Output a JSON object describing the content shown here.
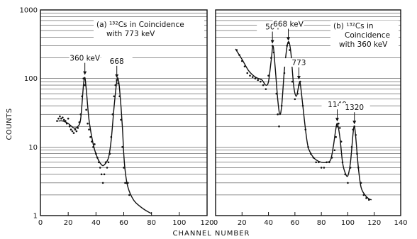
{
  "figure": {
    "ylabel": "COUNTS",
    "xlabel": "CHANNEL NUMBER"
  },
  "chart_data": [
    {
      "type": "scatter",
      "panel_label": "(a)",
      "title_lines": [
        "(a) ¹³²Cs in Coincidence",
        "with 773 keV"
      ],
      "xlim": [
        0,
        120
      ],
      "ylim": [
        1,
        1000
      ],
      "yscale": "log",
      "x_ticks": [
        0,
        20,
        40,
        60,
        80,
        100,
        120
      ],
      "x_tick_labels": [
        "0",
        "20",
        "40",
        "60",
        "80",
        "100",
        "120"
      ],
      "y_ticks": [
        1,
        10,
        100,
        1000
      ],
      "y_tick_labels": [
        "1",
        "10",
        "100",
        "1000"
      ],
      "grid": "horizontal",
      "annotations": [
        {
          "text": "360 keV",
          "x": 32,
          "y": 105
        },
        {
          "text": "668",
          "x": 55,
          "y": 95
        }
      ],
      "series": [
        {
          "points_x": [
            12,
            13,
            14,
            15,
            16,
            17,
            18,
            19,
            20,
            21,
            22,
            23,
            24,
            25,
            26,
            27,
            28,
            29,
            30,
            31,
            32,
            33,
            34,
            35,
            36,
            37,
            38,
            39,
            40,
            41,
            42,
            43,
            44,
            45,
            46,
            47,
            48,
            49,
            50,
            51,
            52,
            53,
            54,
            55,
            56,
            57,
            58,
            59,
            60,
            61,
            62,
            63,
            64
          ],
          "points_y": [
            24,
            26,
            28,
            26,
            27,
            25,
            24,
            22,
            26,
            20,
            18,
            17,
            16,
            18,
            17,
            19,
            23,
            30,
            55,
            100,
            80,
            35,
            22,
            18,
            14,
            12,
            10,
            11,
            8,
            7,
            6,
            5,
            4,
            3,
            4,
            6,
            5,
            6,
            8,
            14,
            30,
            55,
            80,
            95,
            85,
            55,
            25,
            10,
            5,
            3,
            3,
            3,
            2
          ]
        },
        {
          "curve_x": [
            13,
            16,
            20,
            24,
            27,
            29,
            31,
            32,
            33,
            35,
            38,
            41,
            44,
            46,
            49,
            51,
            53,
            55,
            56,
            57,
            59,
            60,
            61,
            63,
            67,
            72,
            78,
            80
          ],
          "curve_y": [
            24,
            24,
            22,
            19,
            20,
            26,
            80,
            103,
            70,
            25,
            11,
            7,
            5.5,
            5.5,
            7,
            13,
            38,
            92,
            98,
            70,
            20,
            8,
            4.5,
            2.6,
            1.7,
            1.35,
            1.12,
            1.08
          ]
        }
      ]
    },
    {
      "type": "scatter",
      "panel_label": "(b)",
      "title_lines": [
        "(b) ¹³²Cs in",
        "Coincidence",
        "with 360 keV"
      ],
      "xlim": [
        0,
        140
      ],
      "ylim": [
        1,
        1000
      ],
      "yscale": "log",
      "x_ticks": [
        0,
        20,
        40,
        60,
        80,
        100,
        120,
        140
      ],
      "x_tick_labels": [
        "0",
        "20",
        "40",
        "60",
        "80",
        "100",
        "120",
        "140"
      ],
      "grid": "horizontal",
      "annotations": [
        {
          "text": "504",
          "x": 43,
          "y": 300
        },
        {
          "text": "668 keV",
          "x": 55,
          "y": 330
        },
        {
          "text": "773",
          "x": 63,
          "y": 90
        },
        {
          "text": "1140",
          "x": 92,
          "y": 22
        },
        {
          "text": "1320",
          "x": 105,
          "y": 20
        }
      ],
      "series": [
        {
          "points_x": [
            16,
            18,
            20,
            22,
            24,
            26,
            28,
            30,
            32,
            34,
            36,
            38,
            40,
            42,
            43,
            44,
            46,
            47,
            48,
            50,
            52,
            54,
            55,
            56,
            58,
            60,
            62,
            63,
            64,
            66,
            68,
            70,
            72,
            74,
            76,
            78,
            80,
            82,
            84,
            86,
            88,
            90,
            91,
            92,
            93,
            94,
            95,
            96,
            98,
            100,
            102,
            103,
            104,
            105,
            106,
            107,
            108,
            110,
            112,
            114,
            116
          ],
          "points_y": [
            260,
            220,
            180,
            150,
            120,
            110,
            105,
            100,
            95,
            90,
            80,
            70,
            110,
            200,
            300,
            240,
            60,
            30,
            20,
            40,
            120,
            300,
            330,
            260,
            90,
            50,
            60,
            80,
            90,
            40,
            18,
            10,
            8,
            7,
            6,
            6,
            5,
            5,
            6,
            6,
            7,
            9,
            14,
            20,
            22,
            19,
            12,
            6,
            4,
            3,
            5,
            10,
            18,
            20,
            15,
            8,
            5,
            3,
            2,
            1.8,
            1.7
          ]
        },
        {
          "curve_x": [
            15,
            20,
            25,
            30,
            35,
            38,
            40,
            42,
            43.5,
            45,
            47,
            48.5,
            50,
            52,
            54,
            55.5,
            57,
            59,
            61,
            63,
            64,
            66,
            68,
            70,
            73,
            76,
            80,
            84,
            87,
            89,
            90.5,
            92,
            94,
            96,
            98,
            100,
            102,
            104,
            105,
            106,
            108,
            110,
            113,
            116,
            118
          ],
          "curve_y": [
            270,
            190,
            130,
            105,
            95,
            80,
            90,
            180,
            300,
            150,
            50,
            30,
            40,
            130,
            290,
            340,
            230,
            80,
            55,
            80,
            85,
            40,
            18,
            10,
            7.5,
            6.5,
            6,
            6,
            6.5,
            10,
            16,
            22,
            14,
            6,
            4.2,
            3.8,
            6,
            16,
            20,
            14,
            5,
            2.6,
            2.0,
            1.75,
            1.7
          ]
        }
      ]
    }
  ]
}
